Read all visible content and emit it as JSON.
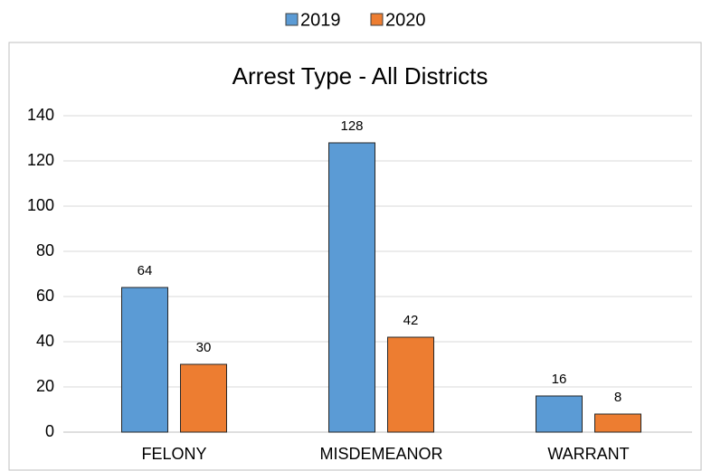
{
  "chart_data": {
    "type": "bar",
    "title": "Arrest Type - All Districts",
    "categories": [
      "FELONY",
      "MISDEMEANOR",
      "WARRANT"
    ],
    "series": [
      {
        "name": "2019",
        "color": "#5b9bd5",
        "values": [
          64,
          128,
          16
        ]
      },
      {
        "name": "2020",
        "color": "#ed7d31",
        "values": [
          30,
          42,
          8
        ]
      }
    ],
    "ylim": [
      0,
      140
    ],
    "yticks": [
      0,
      20,
      40,
      60,
      80,
      100,
      120,
      140
    ],
    "grid": true,
    "legend": "top"
  }
}
